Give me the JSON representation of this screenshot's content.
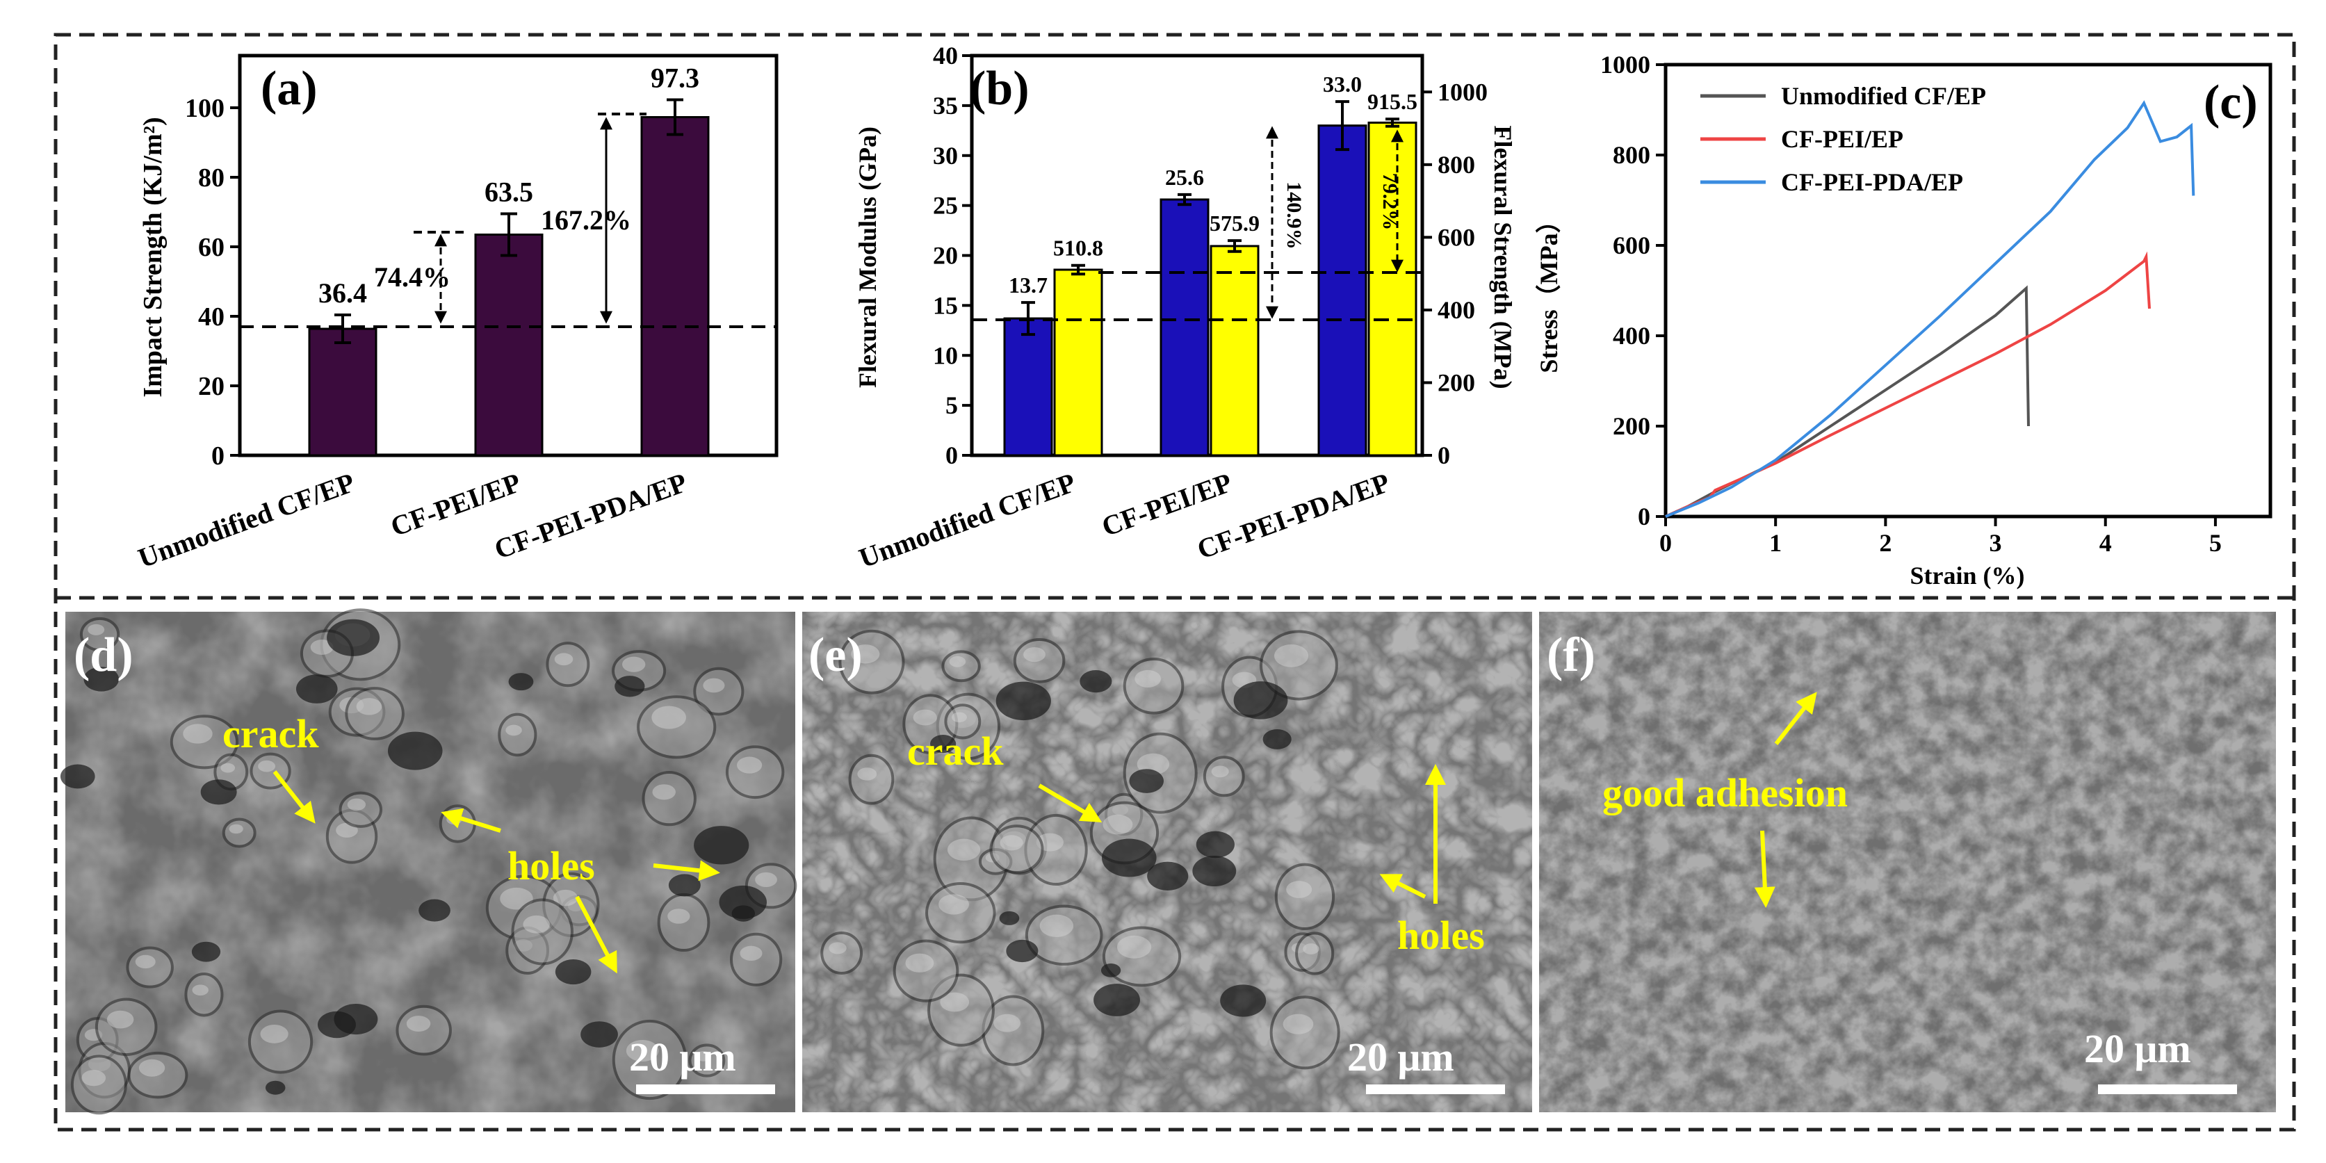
{
  "chart_data": [
    {
      "panel": "(a)",
      "type": "bar",
      "categories": [
        "Unmodified CF/EP",
        "CF-PEI/EP",
        "CF-PEI-PDA/EP"
      ],
      "series": [
        {
          "values": [
            36.4,
            63.5,
            97.3
          ],
          "errors": [
            4,
            6,
            5
          ],
          "color": "#3b0b3d"
        }
      ],
      "value_labels": [
        "36.4",
        "63.5",
        "97.3"
      ],
      "ylabel": "Impact Strength (KJ/m²)",
      "ylim": [
        0,
        115
      ],
      "yticks": [
        0,
        20,
        40,
        60,
        80,
        100
      ],
      "annotations": [
        "74.4%",
        "167.2%"
      ]
    },
    {
      "panel": "(b)",
      "type": "bar",
      "categories": [
        "Unmodified CF/EP",
        "CF-PEI/EP",
        "CF-PEI-PDA/EP"
      ],
      "series": [
        {
          "values": [
            13.7,
            25.6,
            33.0
          ],
          "errors": [
            1.6,
            0.5,
            2.4
          ],
          "color": "#1a10b8",
          "axis": "left"
        },
        {
          "values": [
            510.8,
            575.9,
            915.5
          ],
          "errors": [
            12,
            15,
            10
          ],
          "color": "#ffff00",
          "axis": "right"
        }
      ],
      "value_labels_left": [
        "13.7",
        "25.6",
        "33.0"
      ],
      "value_labels_right": [
        "510.8",
        "575.9",
        "915.5"
      ],
      "ylabel": "Flexural Modulus (GPa)",
      "ylabel_right": "Flexural Strength (MPa)",
      "ylim": [
        0,
        40
      ],
      "ylim_right": [
        0,
        1100
      ],
      "yticks": [
        0,
        5,
        10,
        15,
        20,
        25,
        30,
        35,
        40
      ],
      "yticks_right": [
        0,
        200,
        400,
        600,
        800,
        1000
      ],
      "annotations": [
        "140.9%",
        "79.2%"
      ]
    },
    {
      "panel": "(c)",
      "type": "line",
      "xlabel": "Strain (%)",
      "ylabel": "Stress（MPa）",
      "xlim": [
        0,
        5.5
      ],
      "ylim": [
        0,
        1000
      ],
      "xticks": [
        0,
        1,
        2,
        3,
        4,
        5
      ],
      "yticks": [
        0,
        200,
        400,
        600,
        800,
        1000
      ],
      "legend_position": "top-left",
      "series": [
        {
          "name": "Unmodified CF/EP",
          "color": "#555555",
          "x": [
            0,
            0.2,
            0.45,
            0.7,
            1.0,
            1.5,
            2.0,
            2.5,
            3.0,
            3.28,
            3.3
          ],
          "y": [
            0,
            22,
            55,
            85,
            120,
            200,
            280,
            360,
            445,
            505,
            200
          ]
        },
        {
          "name": "CF-PEI/EP",
          "color": "#ee4444",
          "x": [
            0,
            0.2,
            0.4,
            0.45,
            0.7,
            1.0,
            1.5,
            2.0,
            2.5,
            3.0,
            3.5,
            4.0,
            4.35,
            4.37,
            4.4
          ],
          "y": [
            0,
            22,
            42,
            58,
            85,
            118,
            180,
            240,
            300,
            360,
            425,
            500,
            565,
            575,
            460
          ]
        },
        {
          "name": "CF-PEI-PDA/EP",
          "color": "#3a8ce0",
          "x": [
            0,
            0.3,
            0.6,
            1.0,
            1.5,
            2.0,
            2.5,
            3.0,
            3.5,
            3.9,
            4.2,
            4.35,
            4.5,
            4.65,
            4.78,
            4.8
          ],
          "y": [
            0,
            30,
            65,
            125,
            225,
            335,
            445,
            560,
            675,
            790,
            860,
            915,
            830,
            840,
            865,
            710
          ]
        }
      ]
    }
  ],
  "panels": {
    "d": {
      "label": "(d)",
      "annotations": [
        "crack",
        "holes"
      ],
      "scale_bar": "20 μm"
    },
    "e": {
      "label": "(e)",
      "annotations": [
        "crack",
        "holes"
      ],
      "scale_bar": "20 μm"
    },
    "f": {
      "label": "(f)",
      "annotations": [
        "good adhesion"
      ],
      "scale_bar": "20 μm"
    }
  },
  "colors": {
    "annotation_yellow": "#ffff00",
    "frame": "#222222"
  }
}
